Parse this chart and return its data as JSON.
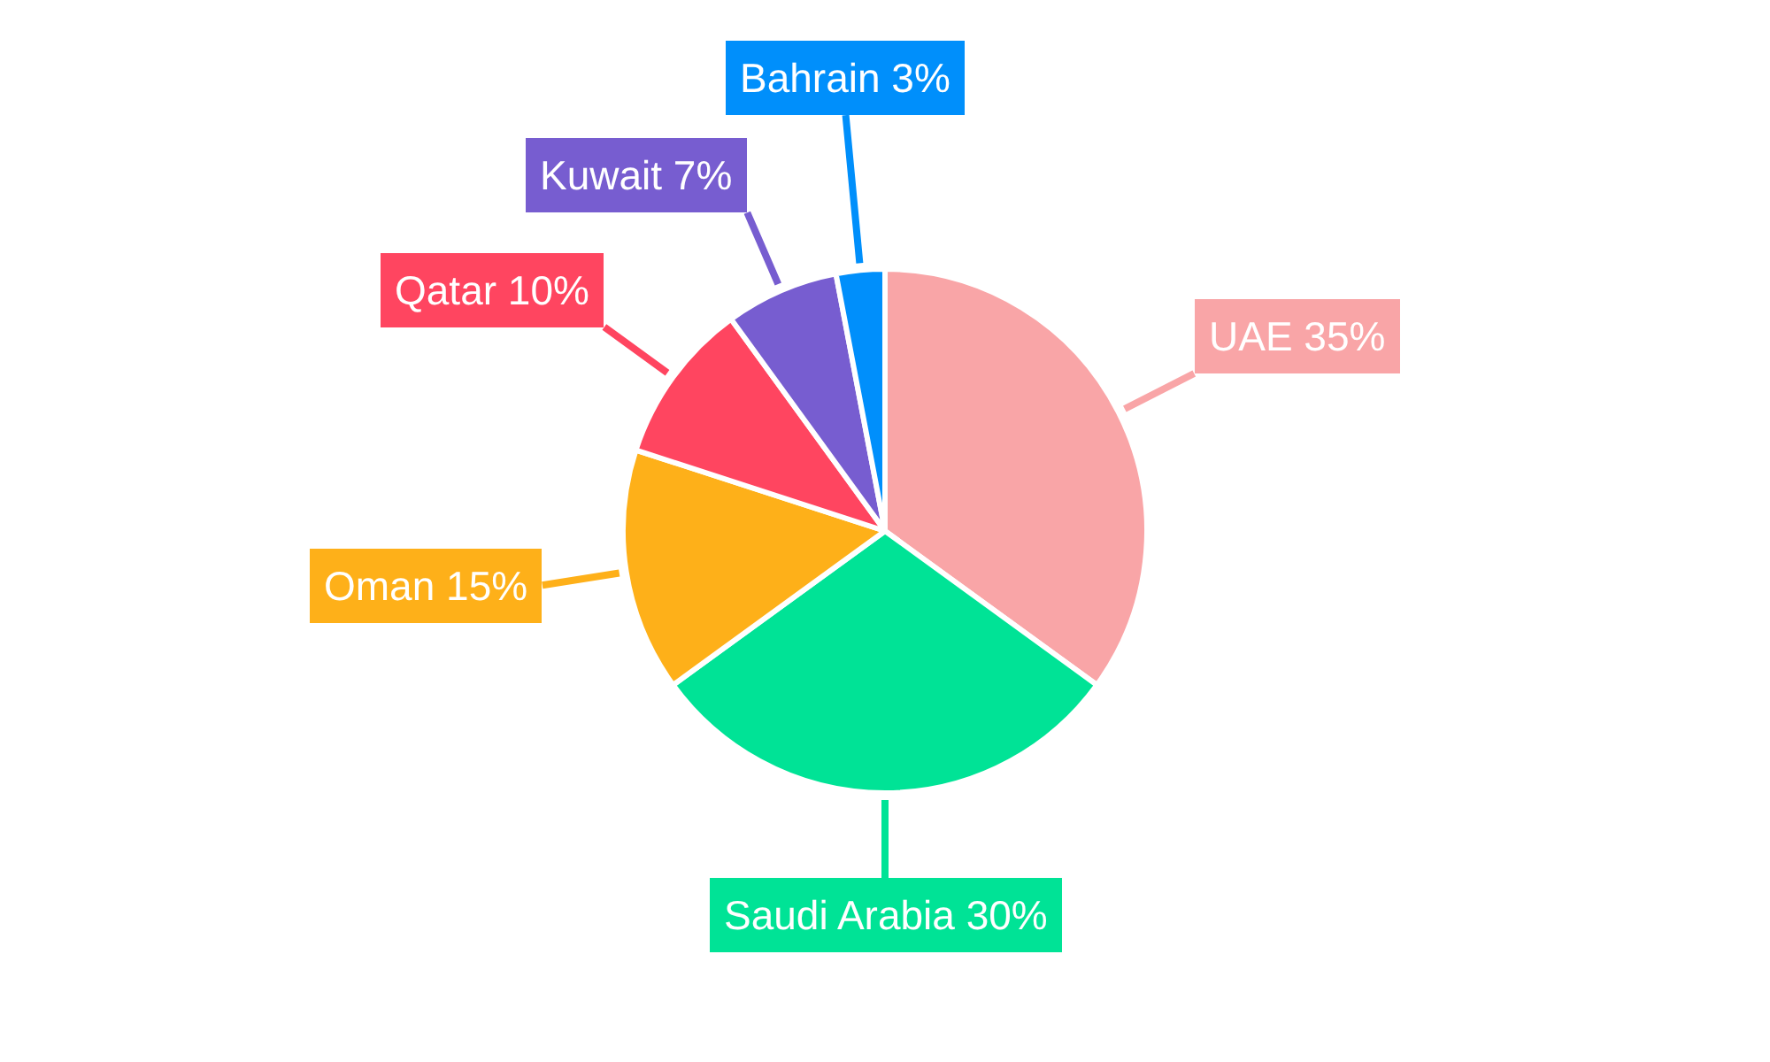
{
  "chart_data": {
    "type": "pie",
    "categories": [
      "UAE",
      "Saudi Arabia",
      "Oman",
      "Qatar",
      "Kuwait",
      "Bahrain"
    ],
    "values": [
      35,
      30,
      15,
      10,
      7,
      3
    ],
    "colors": [
      "#f9a5a7",
      "#00e396",
      "#feb019",
      "#ff4560",
      "#775dd0",
      "#008ffb"
    ],
    "value_labels": [
      "35%",
      "30%",
      "15%",
      "10%",
      "7%",
      "3%"
    ]
  }
}
